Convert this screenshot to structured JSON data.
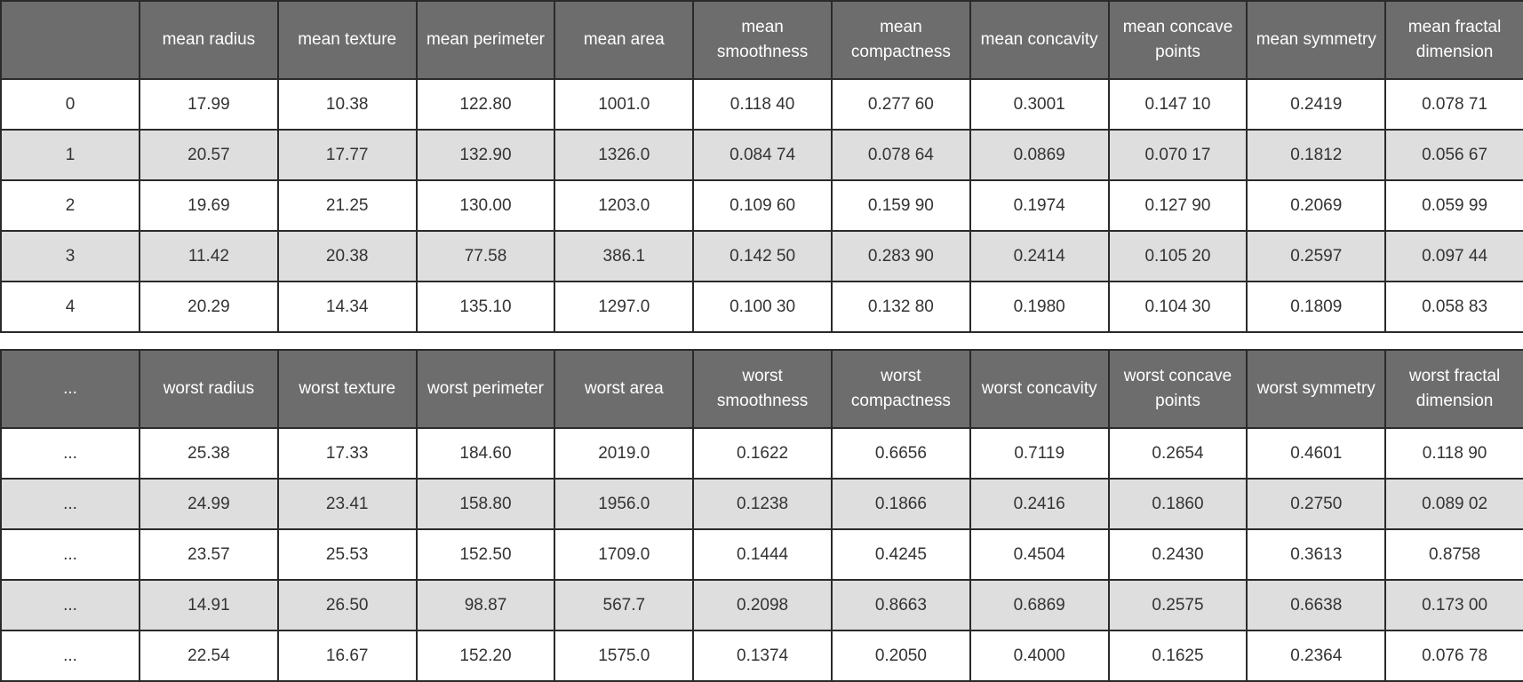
{
  "top_table": {
    "headers": [
      "",
      "mean radius",
      "mean texture",
      "mean perimeter",
      "mean area",
      "mean smoothness",
      "mean compactness",
      "mean concavity",
      "mean concave points",
      "mean symmetry",
      "mean fractal dimension"
    ],
    "rows": [
      [
        "0",
        "17.99",
        "10.38",
        "122.80",
        "1001.0",
        "0.118 40",
        "0.277 60",
        "0.3001",
        "0.147 10",
        "0.2419",
        "0.078 71"
      ],
      [
        "1",
        "20.57",
        "17.77",
        "132.90",
        "1326.0",
        "0.084 74",
        "0.078 64",
        "0.0869",
        "0.070 17",
        "0.1812",
        "0.056 67"
      ],
      [
        "2",
        "19.69",
        "21.25",
        "130.00",
        "1203.0",
        "0.109 60",
        "0.159 90",
        "0.1974",
        "0.127 90",
        "0.2069",
        "0.059 99"
      ],
      [
        "3",
        "11.42",
        "20.38",
        "77.58",
        "386.1",
        "0.142 50",
        "0.283 90",
        "0.2414",
        "0.105 20",
        "0.2597",
        "0.097 44"
      ],
      [
        "4",
        "20.29",
        "14.34",
        "135.10",
        "1297.0",
        "0.100 30",
        "0.132 80",
        "0.1980",
        "0.104 30",
        "0.1809",
        "0.058 83"
      ]
    ]
  },
  "bottom_table": {
    "headers": [
      "...",
      "worst radius",
      "worst texture",
      "worst perimeter",
      "worst area",
      "worst smoothness",
      "worst compactness",
      "worst concavity",
      "worst concave points",
      "worst symmetry",
      "worst fractal dimension"
    ],
    "rows": [
      [
        "...",
        "25.38",
        "17.33",
        "184.60",
        "2019.0",
        "0.1622",
        "0.6656",
        "0.7119",
        "0.2654",
        "0.4601",
        "0.118 90"
      ],
      [
        "...",
        "24.99",
        "23.41",
        "158.80",
        "1956.0",
        "0.1238",
        "0.1866",
        "0.2416",
        "0.1860",
        "0.2750",
        "0.089 02"
      ],
      [
        "...",
        "23.57",
        "25.53",
        "152.50",
        "1709.0",
        "0.1444",
        "0.4245",
        "0.4504",
        "0.2430",
        "0.3613",
        "0.8758"
      ],
      [
        "...",
        "14.91",
        "26.50",
        "98.87",
        "567.7",
        "0.2098",
        "0.8663",
        "0.6869",
        "0.2575",
        "0.6638",
        "0.173 00"
      ],
      [
        "...",
        "22.54",
        "16.67",
        "152.20",
        "1575.0",
        "0.1374",
        "0.2050",
        "0.4000",
        "0.1625",
        "0.2364",
        "0.076 78"
      ]
    ]
  },
  "colors": {
    "header_bg": "#6d6d6d",
    "header_text": "#ffffff",
    "alt_row_bg": "#dedede",
    "grid_line": "#2a2a2a"
  }
}
